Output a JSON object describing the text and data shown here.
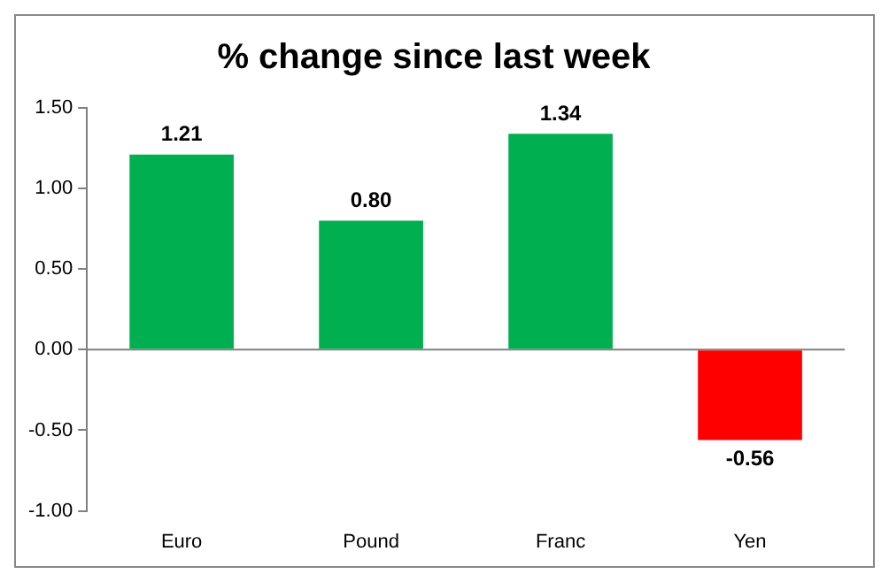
{
  "chart_data": {
    "type": "bar",
    "title": "% change since last week",
    "categories": [
      "Euro",
      "Pound",
      "Franc",
      "Yen"
    ],
    "values": [
      1.21,
      0.8,
      1.34,
      -0.56
    ],
    "colors": [
      "#00b050",
      "#00b050",
      "#00b050",
      "#ff0000"
    ],
    "value_labels": [
      "1.21",
      "0.80",
      "1.34",
      "-0.56"
    ],
    "ylim": [
      -1,
      1.5
    ],
    "yticks": [
      {
        "value": -1,
        "label": "-1.00"
      },
      {
        "value": -0.5,
        "label": "-0.50"
      },
      {
        "value": 0,
        "label": "0.00"
      },
      {
        "value": 0.5,
        "label": "0.50"
      },
      {
        "value": 1,
        "label": "1.00"
      },
      {
        "value": 1.5,
        "label": "1.50"
      }
    ],
    "ref_lines": [
      {
        "axis": "y",
        "value": 0,
        "color": "#808080"
      }
    ],
    "grid": false,
    "legend": false
  }
}
